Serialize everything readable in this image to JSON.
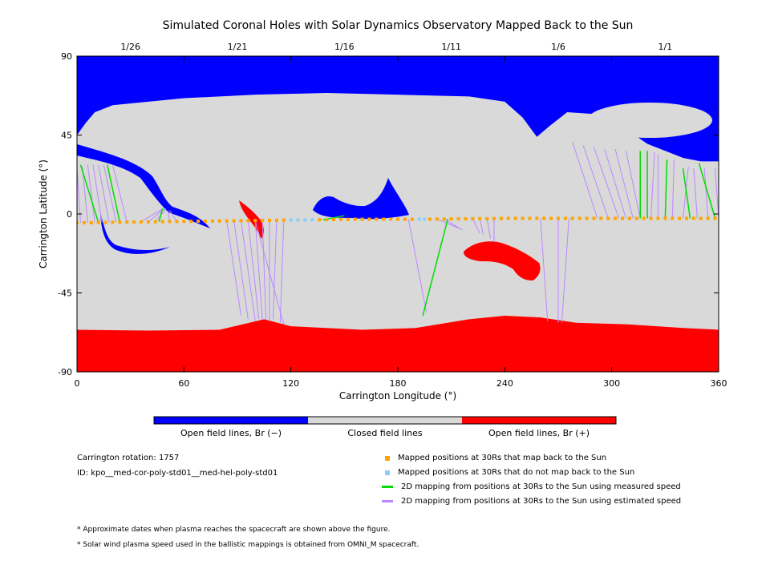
{
  "chart_data": {
    "type": "map",
    "title": "Simulated Coronal Holes with Solar Dynamics Observatory Mapped Back to the Sun",
    "xlabel": "Carrington Longitude (°)",
    "ylabel": "Carrington Latitude (°)",
    "xlim": [
      0,
      360
    ],
    "ylim": [
      -90,
      90
    ],
    "x_ticks": [
      0,
      60,
      120,
      180,
      240,
      300,
      360
    ],
    "y_ticks": [
      -90,
      -45,
      0,
      45,
      90
    ],
    "top_date_ticks": [
      {
        "label": "1/26",
        "lon": 30
      },
      {
        "label": "1/21",
        "lon": 90
      },
      {
        "label": "1/16",
        "lon": 150
      },
      {
        "label": "1/11",
        "lon": 210
      },
      {
        "label": "1/6",
        "lon": 270
      },
      {
        "label": "1/1",
        "lon": 330
      }
    ],
    "colors": {
      "open_negative": "#0000ff",
      "closed": "#d9d9d9",
      "open_positive": "#ff0000",
      "mapped_point": "#ffa500",
      "unmapped_point": "#87cefa",
      "measured_speed_line": "#00dd00",
      "estimated_speed_line": "#bb88ff"
    },
    "colorbar": [
      {
        "label": "Open field lines, Br (−)",
        "color": "#0000ff"
      },
      {
        "label": "Closed field lines",
        "color": "#d9d9d9"
      },
      {
        "label": "Open field lines, Br (+)",
        "color": "#ff0000"
      }
    ],
    "trajectory_latitude": [
      [
        0,
        -5
      ],
      [
        40,
        -4.5
      ],
      [
        80,
        -4
      ],
      [
        120,
        -3.5
      ],
      [
        160,
        -3
      ],
      [
        200,
        -3
      ],
      [
        240,
        -2.5
      ],
      [
        280,
        -2.5
      ],
      [
        320,
        -2.5
      ],
      [
        360,
        -2.5
      ]
    ],
    "north_polar_boundary": [
      [
        0,
        45
      ],
      [
        5,
        52
      ],
      [
        10,
        58
      ],
      [
        20,
        62
      ],
      [
        40,
        64
      ],
      [
        60,
        66
      ],
      [
        100,
        68
      ],
      [
        140,
        69
      ],
      [
        180,
        68
      ],
      [
        220,
        67
      ],
      [
        240,
        64
      ],
      [
        250,
        55
      ],
      [
        258,
        44
      ],
      [
        265,
        50
      ],
      [
        275,
        58
      ],
      [
        290,
        57
      ],
      [
        300,
        52
      ],
      [
        310,
        47
      ],
      [
        320,
        40
      ],
      [
        330,
        36
      ],
      [
        340,
        32
      ],
      [
        350,
        30
      ],
      [
        360,
        30
      ]
    ],
    "south_polar_boundary": [
      [
        0,
        -66
      ],
      [
        40,
        -66.5
      ],
      [
        80,
        -66
      ],
      [
        105,
        -60
      ],
      [
        120,
        -64
      ],
      [
        160,
        -66
      ],
      [
        190,
        -65
      ],
      [
        220,
        -60
      ],
      [
        240,
        -58
      ],
      [
        260,
        -59
      ],
      [
        280,
        -62
      ],
      [
        310,
        -63
      ],
      [
        340,
        -65
      ],
      [
        360,
        -66
      ]
    ],
    "mapped_points": [
      [
        0,
        -5
      ],
      [
        4,
        -5
      ],
      [
        8,
        -5
      ],
      [
        12,
        -4.8
      ],
      [
        16,
        -4.8
      ],
      [
        20,
        -4.7
      ],
      [
        24,
        -4.7
      ],
      [
        28,
        -4.6
      ],
      [
        32,
        -4.6
      ],
      [
        36,
        -4.5
      ],
      [
        40,
        -4.5
      ],
      [
        44,
        -4.4
      ],
      [
        48,
        -4.4
      ],
      [
        52,
        -4.3
      ],
      [
        56,
        -4.3
      ],
      [
        60,
        -4.2
      ],
      [
        64,
        -4.2
      ],
      [
        68,
        -4.1
      ],
      [
        72,
        -4.1
      ],
      [
        76,
        -4
      ],
      [
        80,
        -4
      ],
      [
        84,
        -3.9
      ],
      [
        88,
        -3.9
      ],
      [
        92,
        -3.8
      ],
      [
        96,
        -3.8
      ],
      [
        100,
        -3.7
      ],
      [
        104,
        -3.7
      ],
      [
        108,
        -3.6
      ],
      [
        112,
        -3.6
      ],
      [
        116,
        -3.5
      ],
      [
        136,
        -3.3
      ],
      [
        140,
        -3.2
      ],
      [
        144,
        -3.2
      ],
      [
        148,
        -3.1
      ],
      [
        152,
        -3.1
      ],
      [
        156,
        -3
      ],
      [
        160,
        -3
      ],
      [
        164,
        -3
      ],
      [
        168,
        -3
      ],
      [
        172,
        -3
      ],
      [
        176,
        -3
      ],
      [
        180,
        -3
      ],
      [
        184,
        -3
      ],
      [
        188,
        -3
      ],
      [
        198,
        -3
      ],
      [
        202,
        -2.9
      ],
      [
        206,
        -2.9
      ],
      [
        210,
        -2.8
      ],
      [
        214,
        -2.8
      ],
      [
        218,
        -2.8
      ],
      [
        222,
        -2.7
      ],
      [
        226,
        -2.7
      ],
      [
        230,
        -2.7
      ],
      [
        234,
        -2.6
      ],
      [
        238,
        -2.6
      ],
      [
        242,
        -2.5
      ],
      [
        246,
        -2.5
      ],
      [
        250,
        -2.5
      ],
      [
        254,
        -2.5
      ],
      [
        258,
        -2.5
      ],
      [
        262,
        -2.5
      ],
      [
        266,
        -2.5
      ],
      [
        270,
        -2.5
      ],
      [
        274,
        -2.5
      ],
      [
        278,
        -2.5
      ],
      [
        282,
        -2.5
      ],
      [
        286,
        -2.5
      ],
      [
        290,
        -2.5
      ],
      [
        294,
        -2.5
      ],
      [
        298,
        -2.5
      ],
      [
        302,
        -2.5
      ],
      [
        306,
        -2.5
      ],
      [
        310,
        -2.5
      ],
      [
        314,
        -2.5
      ],
      [
        318,
        -2.5
      ],
      [
        322,
        -2.5
      ],
      [
        326,
        -2.5
      ],
      [
        330,
        -2.5
      ],
      [
        334,
        -2.5
      ],
      [
        338,
        -2.5
      ],
      [
        342,
        -2.5
      ],
      [
        346,
        -2.5
      ],
      [
        350,
        -2.5
      ],
      [
        354,
        -2.5
      ],
      [
        358,
        -2.5
      ]
    ],
    "unmapped_points": [
      [
        120,
        -3.4
      ],
      [
        124,
        -3.4
      ],
      [
        128,
        -3.4
      ],
      [
        132,
        -3.3
      ],
      [
        192,
        -3
      ],
      [
        195,
        -3
      ]
    ],
    "measured_speed_mappings": [
      [
        [
          12,
          -4.8
        ],
        [
          2,
          28
        ]
      ],
      [
        [
          24,
          -4.7
        ],
        [
          17,
          28
        ]
      ],
      [
        [
          46,
          -4.4
        ],
        [
          48,
          3
        ]
      ],
      [
        [
          138,
          -3.3
        ],
        [
          150,
          -1
        ]
      ],
      [
        [
          208,
          -2.9
        ],
        [
          194,
          -58
        ]
      ],
      [
        [
          316,
          -2.5
        ],
        [
          316,
          36
        ]
      ],
      [
        [
          320,
          -2.5
        ],
        [
          320,
          36
        ]
      ],
      [
        [
          330,
          -2.5
        ],
        [
          331,
          31
        ]
      ],
      [
        [
          344,
          -2.5
        ],
        [
          340,
          26
        ]
      ],
      [
        [
          358,
          -2.5
        ],
        [
          349,
          29
        ]
      ]
    ],
    "estimated_speed_mappings": [
      [
        [
          2,
          -5
        ],
        [
          0,
          26
        ]
      ],
      [
        [
          6,
          -5
        ],
        [
          3,
          27
        ]
      ],
      [
        [
          10,
          -4.9
        ],
        [
          6,
          28
        ]
      ],
      [
        [
          14,
          -4.8
        ],
        [
          9,
          28
        ]
      ],
      [
        [
          18,
          -4.8
        ],
        [
          12,
          28
        ]
      ],
      [
        [
          22,
          -4.7
        ],
        [
          15,
          28
        ]
      ],
      [
        [
          28,
          -4.6
        ],
        [
          20,
          28
        ]
      ],
      [
        [
          36,
          -4.5
        ],
        [
          48,
          3
        ]
      ],
      [
        [
          40,
          -4.5
        ],
        [
          49,
          3
        ]
      ],
      [
        [
          44,
          -4.4
        ],
        [
          50,
          3
        ]
      ],
      [
        [
          52,
          -4.3
        ],
        [
          51,
          2
        ]
      ],
      [
        [
          56,
          -4.3
        ],
        [
          52,
          2
        ]
      ],
      [
        [
          84,
          -3.9
        ],
        [
          92,
          -58
        ]
      ],
      [
        [
          88,
          -3.9
        ],
        [
          96,
          -60
        ]
      ],
      [
        [
          92,
          -3.8
        ],
        [
          100,
          -61
        ]
      ],
      [
        [
          96,
          -3.8
        ],
        [
          102,
          -60
        ]
      ],
      [
        [
          100,
          -3.7
        ],
        [
          104,
          -60
        ]
      ],
      [
        [
          104,
          -3.7
        ],
        [
          106,
          -60
        ]
      ],
      [
        [
          108,
          -3.6
        ],
        [
          108,
          -61
        ]
      ],
      [
        [
          112,
          -3.6
        ],
        [
          110,
          -60
        ]
      ],
      [
        [
          116,
          -3.5
        ],
        [
          114,
          -62
        ]
      ],
      [
        [
          100,
          -3.7
        ],
        [
          116,
          -63
        ]
      ],
      [
        [
          186,
          -3
        ],
        [
          196,
          -56
        ]
      ],
      [
        [
          202,
          -2.9
        ],
        [
          214,
          -8
        ]
      ],
      [
        [
          206,
          -2.9
        ],
        [
          216,
          -9
        ]
      ],
      [
        [
          222,
          -2.7
        ],
        [
          226,
          -11
        ]
      ],
      [
        [
          226,
          -2.7
        ],
        [
          228,
          -12
        ]
      ],
      [
        [
          230,
          -2.7
        ],
        [
          232,
          -14
        ]
      ],
      [
        [
          234,
          -2.6
        ],
        [
          234,
          -16
        ]
      ],
      [
        [
          260,
          -2.5
        ],
        [
          264,
          -61
        ]
      ],
      [
        [
          270,
          -2.5
        ],
        [
          270,
          -62
        ]
      ],
      [
        [
          276,
          -2.5
        ],
        [
          272,
          -62
        ]
      ],
      [
        [
          292,
          -2.5
        ],
        [
          278,
          41
        ]
      ],
      [
        [
          298,
          -2.5
        ],
        [
          284,
          39
        ]
      ],
      [
        [
          304,
          -2.5
        ],
        [
          290,
          38
        ]
      ],
      [
        [
          308,
          -2.5
        ],
        [
          296,
          37
        ]
      ],
      [
        [
          312,
          -2.5
        ],
        [
          302,
          37
        ]
      ],
      [
        [
          316,
          -2.5
        ],
        [
          308,
          36
        ]
      ],
      [
        [
          322,
          -2.5
        ],
        [
          324,
          35
        ]
      ],
      [
        [
          326,
          -2.5
        ],
        [
          326,
          34
        ]
      ],
      [
        [
          334,
          -2.5
        ],
        [
          335,
          31
        ]
      ],
      [
        [
          340,
          -2.5
        ],
        [
          343,
          27
        ]
      ],
      [
        [
          348,
          -2.5
        ],
        [
          346,
          26
        ]
      ],
      [
        [
          354,
          -2.5
        ],
        [
          352,
          26
        ]
      ],
      [
        [
          360,
          -2.5
        ],
        [
          358,
          26
        ]
      ]
    ]
  },
  "info": {
    "rotation": "Carrington rotation: 1757",
    "id": "ID: kpo__med-cor-poly-std01__med-hel-poly-std01"
  },
  "legend": [
    {
      "label": "Mapped positions at 30Rs that map back to the Sun",
      "kind": "dot",
      "color": "#ffa500"
    },
    {
      "label": "Mapped positions at 30Rs that do not map back to the Sun",
      "kind": "dot",
      "color": "#87cefa"
    },
    {
      "label": "2D mapping from positions at 30Rs to the Sun using measured speed",
      "kind": "line",
      "color": "#00dd00"
    },
    {
      "label": "2D mapping from positions at 30Rs to the Sun using estimated speed",
      "kind": "line",
      "color": "#bb88ff"
    }
  ],
  "notes": [
    "* Approximate dates when plasma reaches the spacecraft are shown above the figure.",
    "* Solar wind plasma speed used in the ballistic mappings is obtained from OMNI_M spacecraft."
  ]
}
